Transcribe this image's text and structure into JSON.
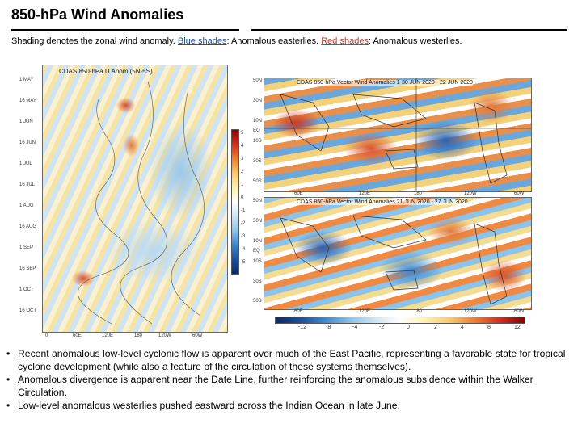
{
  "slide": {
    "title": "850-hPa Wind Anomalies",
    "subtitle_prefix": "Shading denotes the zonal wind anomaly. ",
    "blue_link": "Blue shades",
    "blue_text": ": Anomalous easterlies. ",
    "red_link": "Red shades",
    "red_text": ": Anomalous westerlies."
  },
  "hovmoller": {
    "title": "CDAS 850-hPa U Anom (5N-5S)",
    "y_labels": [
      "1 MAY",
      "16 MAY",
      "1 JUN",
      "16 JUN",
      "1 JUL",
      "16 JUL",
      "1 AUG",
      "16 AUG",
      "1 SEP",
      "16 SEP",
      "1 OCT",
      "16 OCT"
    ],
    "x_labels": [
      "0",
      "60E",
      "120E",
      "180",
      "120W",
      "60W"
    ],
    "colorbar": [
      "5",
      "4",
      "3",
      "2",
      "1",
      "0",
      "-1",
      "-2",
      "-3",
      "-4",
      "-5"
    ]
  },
  "maps": [
    {
      "title": "CDAS 850-hPa Vector Wind Anomalies 1-30 JUN 2020 - 22 JUN 2020"
    },
    {
      "title": "CDAS 850-hPa Vector Wind Anomalies 21 JUN 2020 - 27 JUN 2020"
    }
  ],
  "map_lat_labels": [
    "50N",
    "40N",
    "30N",
    "20N",
    "10N",
    "EQ",
    "10S",
    "20S",
    "30S",
    "40S",
    "50S"
  ],
  "map_lon_labels": [
    "60E",
    "120E",
    "180",
    "120W",
    "60W"
  ],
  "map_colorbar": [
    "-12",
    "-8",
    "-4",
    "-2",
    "0",
    "2",
    "4",
    "8",
    "12"
  ],
  "bullets": [
    "Recent anomalous low-level cyclonic flow is apparent over much of the East Pacific, representing a favorable state for tropical cyclone development (while also a feature of the circulation of these systems themselves).",
    "Anomalous divergence is apparent near the Date Line, further reinforcing the anomalous subsidence within the Walker Circulation.",
    "Low-level anomalous westerlies pushed eastward across the Indian Ocean in late June."
  ],
  "colors": {
    "blue": "#1f4ea8",
    "red": "#c0392b"
  }
}
